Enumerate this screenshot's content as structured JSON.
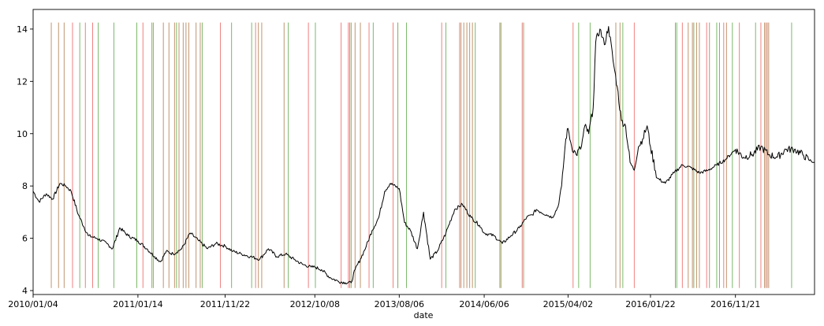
{
  "chart_data": {
    "type": "line",
    "title": "",
    "xlabel": "date",
    "ylabel": "",
    "xlim": [
      "2010-01-04",
      "2017-08-31"
    ],
    "ylim": [
      3.85,
      14.75
    ],
    "grid": false,
    "x_ticks": [
      "2010/01/04",
      "2011/01/14",
      "2011/11/22",
      "2012/10/08",
      "2013/08/06",
      "2014/06/06",
      "2015/04/02",
      "2016/01/22",
      "2016/11/21"
    ],
    "y_ticks": [
      4,
      6,
      8,
      10,
      12,
      14
    ],
    "series": [
      {
        "color": "#000000",
        "x": [
          "2010-01-04",
          "2010-01-25",
          "2010-02-20",
          "2010-03-15",
          "2010-04-10",
          "2010-05-01",
          "2010-05-20",
          "2010-06-15",
          "2010-07-20",
          "2010-08-20",
          "2010-09-25",
          "2010-10-15",
          "2010-11-10",
          "2010-12-10",
          "2011-01-14",
          "2011-02-15",
          "2011-03-15",
          "2011-04-05",
          "2011-04-25",
          "2011-05-20",
          "2011-06-20",
          "2011-07-20",
          "2011-08-20",
          "2011-09-20",
          "2011-10-20",
          "2011-11-22",
          "2011-12-20",
          "2012-01-20",
          "2012-02-20",
          "2012-03-25",
          "2012-04-25",
          "2012-05-25",
          "2012-06-25",
          "2012-07-25",
          "2012-08-25",
          "2012-09-25",
          "2012-10-08",
          "2012-11-01",
          "2012-12-01",
          "2013-01-01",
          "2013-01-25",
          "2013-02-15",
          "2013-03-01",
          "2013-03-20",
          "2013-04-10",
          "2013-05-01",
          "2013-05-25",
          "2013-06-15",
          "2013-07-05",
          "2013-08-06",
          "2013-08-25",
          "2013-09-15",
          "2013-10-10",
          "2013-11-01",
          "2013-11-25",
          "2013-12-20",
          "2014-01-20",
          "2014-02-20",
          "2014-03-20",
          "2014-04-20",
          "2014-05-20",
          "2014-06-06",
          "2014-07-10",
          "2014-08-10",
          "2014-09-10",
          "2014-10-10",
          "2014-11-05",
          "2014-11-25",
          "2014-12-10",
          "2014-12-25",
          "2015-01-15",
          "2015-02-05",
          "2015-02-25",
          "2015-03-10",
          "2015-03-25",
          "2015-04-02",
          "2015-04-15",
          "2015-05-01",
          "2015-05-20",
          "2015-06-01",
          "2015-06-15",
          "2015-07-01",
          "2015-07-10",
          "2015-07-25",
          "2015-08-10",
          "2015-08-25",
          "2015-09-10",
          "2015-09-25",
          "2015-10-10",
          "2015-10-25",
          "2015-11-10",
          "2015-11-25",
          "2015-12-10",
          "2015-12-25",
          "2016-01-10",
          "2016-01-22",
          "2016-02-15",
          "2016-03-15",
          "2016-04-15",
          "2016-05-15",
          "2016-06-15",
          "2016-07-15",
          "2016-08-15",
          "2016-09-15",
          "2016-10-15",
          "2016-11-21",
          "2016-12-20",
          "2017-01-20",
          "2017-02-20",
          "2017-03-20",
          "2017-04-20",
          "2017-05-20",
          "2017-06-20",
          "2017-07-20",
          "2017-08-10",
          "2017-08-31"
        ],
        "y": [
          7.8,
          7.4,
          7.7,
          7.5,
          8.1,
          8.0,
          7.8,
          6.9,
          6.1,
          6.0,
          5.8,
          5.6,
          6.4,
          6.1,
          5.9,
          5.6,
          5.3,
          5.1,
          5.5,
          5.4,
          5.6,
          6.2,
          5.9,
          5.6,
          5.8,
          5.7,
          5.5,
          5.4,
          5.3,
          5.2,
          5.6,
          5.3,
          5.4,
          5.2,
          5.0,
          4.9,
          4.9,
          4.8,
          4.5,
          4.35,
          4.3,
          4.3,
          4.8,
          5.2,
          5.7,
          6.3,
          6.8,
          7.8,
          8.1,
          7.9,
          6.6,
          6.3,
          5.6,
          7.0,
          5.2,
          5.5,
          6.2,
          7.1,
          7.3,
          6.8,
          6.5,
          6.2,
          6.1,
          5.8,
          6.1,
          6.4,
          6.8,
          6.9,
          7.1,
          7.0,
          6.9,
          6.8,
          7.2,
          8.0,
          9.8,
          10.2,
          9.5,
          9.2,
          9.5,
          10.3,
          10.0,
          11.0,
          13.5,
          14.0,
          13.4,
          14.1,
          12.8,
          11.8,
          10.5,
          10.3,
          8.9,
          8.6,
          9.5,
          9.8,
          10.3,
          9.5,
          8.3,
          8.1,
          8.5,
          8.8,
          8.7,
          8.5,
          8.6,
          8.8,
          9.0,
          9.4,
          9.1,
          9.2,
          9.5,
          9.2,
          9.1,
          9.4,
          9.4,
          9.2,
          9.0,
          8.9
        ]
      }
    ],
    "vertical_markers": [
      {
        "color": "#f08080",
        "dates": [
          "2010-05-25",
          "2010-07-10",
          "2010-08-05",
          "2011-02-01",
          "2011-11-05",
          "2012-03-10",
          "2012-09-15",
          "2013-01-10",
          "2013-02-05",
          "2013-04-20",
          "2013-07-15",
          "2013-08-01",
          "2014-01-05",
          "2014-03-10",
          "2014-10-20",
          "2015-04-20",
          "2015-11-25",
          "2016-05-15",
          "2016-08-10",
          "2016-10-10",
          "2016-12-05",
          "2017-02-20",
          "2017-03-15"
        ]
      },
      {
        "color": "#7cb86a",
        "dates": [
          "2010-06-20",
          "2010-08-25",
          "2010-10-20",
          "2011-01-10",
          "2011-03-05",
          "2011-06-01",
          "2011-09-01",
          "2011-12-15",
          "2012-02-25",
          "2012-07-05",
          "2012-10-10",
          "2013-02-10",
          "2013-05-05",
          "2013-08-01",
          "2013-09-01",
          "2014-01-20",
          "2014-05-05",
          "2014-08-01",
          "2014-10-25",
          "2015-05-10",
          "2015-06-20",
          "2015-10-15",
          "2016-04-25",
          "2016-06-25",
          "2016-09-15",
          "2016-11-10",
          "2017-02-01",
          "2017-06-10"
        ]
      },
      {
        "color": "#c0956e",
        "dates": [
          "2010-03-10",
          "2010-04-05",
          "2010-04-25",
          "2011-03-10",
          "2011-04-15",
          "2011-05-05",
          "2011-05-25",
          "2011-06-10",
          "2011-06-25",
          "2011-07-05",
          "2011-07-15",
          "2011-08-10",
          "2011-08-25",
          "2012-03-20",
          "2012-04-01",
          "2012-06-20",
          "2013-02-15",
          "2013-03-01",
          "2013-03-20",
          "2014-03-15",
          "2014-03-25",
          "2014-04-05",
          "2014-04-15",
          "2014-04-25",
          "2014-08-05",
          "2015-09-20",
          "2015-10-05",
          "2016-04-20",
          "2016-06-05",
          "2016-06-20",
          "2016-07-05",
          "2016-07-15",
          "2016-08-20",
          "2016-09-25",
          "2016-10-20",
          "2017-03-05",
          "2017-03-10",
          "2017-03-20"
        ]
      }
    ]
  }
}
